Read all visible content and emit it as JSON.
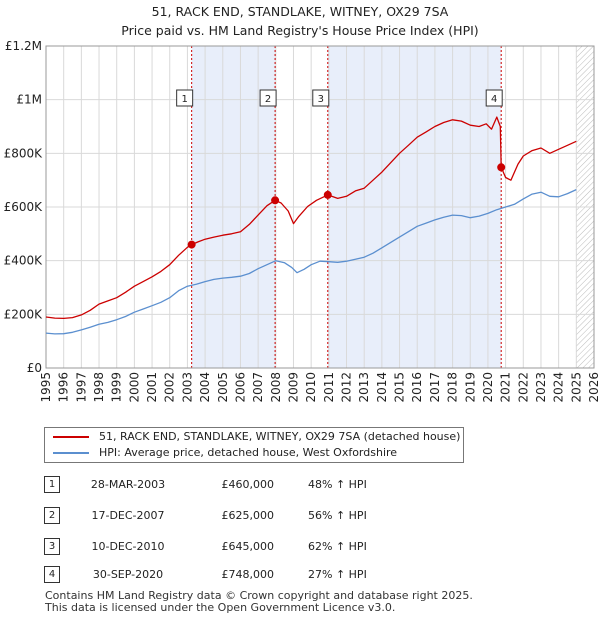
{
  "title_line1": "51, RACK END, STANDLAKE, WITNEY, OX29 7SA",
  "title_line2": "Price paid vs. HM Land Registry's House Price Index (HPI)",
  "legend": {
    "property": "51, RACK END, STANDLAKE, WITNEY, OX29 7SA (detached house)",
    "hpi": "HPI: Average price, detached house, West Oxfordshire"
  },
  "colors": {
    "property_line": "#cc0000",
    "hpi_line": "#5b8fcf",
    "shade": "#e8eefa",
    "grid": "#d9d9d9"
  },
  "sales": [
    {
      "num": "1",
      "date": "28-MAR-2003",
      "price": "£460,000",
      "hpi": "48% ↑ HPI"
    },
    {
      "num": "2",
      "date": "17-DEC-2007",
      "price": "£625,000",
      "hpi": "56% ↑ HPI"
    },
    {
      "num": "3",
      "date": "10-DEC-2010",
      "price": "£645,000",
      "hpi": "62% ↑ HPI"
    },
    {
      "num": "4",
      "date": "30-SEP-2020",
      "price": "£748,000",
      "hpi": "27% ↑ HPI"
    }
  ],
  "footer": {
    "line1": "Contains HM Land Registry data © Crown copyright and database right 2025.",
    "line2": "This data is licensed under the Open Government Licence v3.0."
  },
  "chart_data": {
    "type": "line",
    "title": "51, RACK END, STANDLAKE, WITNEY, OX29 7SA — Price paid vs. HM Land Registry's House Price Index (HPI)",
    "xlabel": "",
    "ylabel": "",
    "xlim": [
      1995,
      2026
    ],
    "ylim": [
      0,
      1200000
    ],
    "x_ticks": [
      1995,
      1996,
      1997,
      1998,
      1999,
      2000,
      2001,
      2002,
      2003,
      2004,
      2005,
      2006,
      2007,
      2008,
      2009,
      2010,
      2011,
      2012,
      2013,
      2014,
      2015,
      2016,
      2017,
      2018,
      2019,
      2020,
      2021,
      2022,
      2023,
      2024,
      2025,
      2026
    ],
    "y_ticks": [
      {
        "value": 0,
        "label": "£0"
      },
      {
        "value": 200000,
        "label": "£200K"
      },
      {
        "value": 400000,
        "label": "£400K"
      },
      {
        "value": 600000,
        "label": "£600K"
      },
      {
        "value": 800000,
        "label": "£800K"
      },
      {
        "value": 1000000,
        "label": "£1M"
      },
      {
        "value": 1200000,
        "label": "£1.2M"
      }
    ],
    "grid": true,
    "shaded_ranges": [
      [
        2003.24,
        2007.96
      ],
      [
        2010.94,
        2020.75
      ]
    ],
    "future_hatch_from": 2025.0,
    "sale_markers": [
      {
        "label": "1",
        "x": 2003.24,
        "y": 460000
      },
      {
        "label": "2",
        "x": 2007.96,
        "y": 625000
      },
      {
        "label": "3",
        "x": 2010.94,
        "y": 645000
      },
      {
        "label": "4",
        "x": 2020.75,
        "y": 748000
      }
    ],
    "series": [
      {
        "name": "51, RACK END, STANDLAKE, WITNEY, OX29 7SA (detached house)",
        "color": "#cc0000",
        "points": [
          [
            1995.0,
            190000
          ],
          [
            1995.5,
            186000
          ],
          [
            1996.0,
            185000
          ],
          [
            1996.5,
            188000
          ],
          [
            1997.0,
            198000
          ],
          [
            1997.5,
            215000
          ],
          [
            1998.0,
            238000
          ],
          [
            1998.5,
            250000
          ],
          [
            1999.0,
            262000
          ],
          [
            1999.5,
            282000
          ],
          [
            2000.0,
            305000
          ],
          [
            2000.5,
            322000
          ],
          [
            2001.0,
            340000
          ],
          [
            2001.5,
            360000
          ],
          [
            2002.0,
            385000
          ],
          [
            2002.5,
            420000
          ],
          [
            2003.0,
            450000
          ],
          [
            2003.24,
            460000
          ],
          [
            2003.6,
            470000
          ],
          [
            2004.0,
            480000
          ],
          [
            2004.5,
            488000
          ],
          [
            2005.0,
            495000
          ],
          [
            2005.5,
            500000
          ],
          [
            2006.0,
            508000
          ],
          [
            2006.5,
            535000
          ],
          [
            2007.0,
            570000
          ],
          [
            2007.5,
            605000
          ],
          [
            2007.96,
            625000
          ],
          [
            2008.3,
            615000
          ],
          [
            2008.7,
            585000
          ],
          [
            2009.0,
            538000
          ],
          [
            2009.3,
            565000
          ],
          [
            2009.8,
            602000
          ],
          [
            2010.3,
            625000
          ],
          [
            2010.94,
            645000
          ],
          [
            2011.5,
            632000
          ],
          [
            2012.0,
            640000
          ],
          [
            2012.5,
            660000
          ],
          [
            2013.0,
            670000
          ],
          [
            2013.5,
            700000
          ],
          [
            2014.0,
            730000
          ],
          [
            2014.5,
            765000
          ],
          [
            2015.0,
            800000
          ],
          [
            2015.5,
            830000
          ],
          [
            2016.0,
            860000
          ],
          [
            2016.5,
            880000
          ],
          [
            2017.0,
            900000
          ],
          [
            2017.5,
            915000
          ],
          [
            2018.0,
            925000
          ],
          [
            2018.5,
            920000
          ],
          [
            2019.0,
            905000
          ],
          [
            2019.5,
            900000
          ],
          [
            2019.9,
            910000
          ],
          [
            2020.2,
            890000
          ],
          [
            2020.5,
            935000
          ],
          [
            2020.7,
            900000
          ],
          [
            2020.75,
            748000
          ],
          [
            2021.0,
            710000
          ],
          [
            2021.3,
            700000
          ],
          [
            2021.7,
            760000
          ],
          [
            2022.0,
            790000
          ],
          [
            2022.5,
            810000
          ],
          [
            2023.0,
            820000
          ],
          [
            2023.5,
            800000
          ],
          [
            2024.0,
            815000
          ],
          [
            2024.5,
            830000
          ],
          [
            2025.0,
            845000
          ]
        ]
      },
      {
        "name": "HPI: Average price, detached house, West Oxfordshire",
        "color": "#5b8fcf",
        "points": [
          [
            1995.0,
            130000
          ],
          [
            1995.5,
            127000
          ],
          [
            1996.0,
            128000
          ],
          [
            1996.5,
            133000
          ],
          [
            1997.0,
            142000
          ],
          [
            1997.5,
            152000
          ],
          [
            1998.0,
            163000
          ],
          [
            1998.5,
            170000
          ],
          [
            1999.0,
            180000
          ],
          [
            1999.5,
            192000
          ],
          [
            2000.0,
            208000
          ],
          [
            2000.5,
            220000
          ],
          [
            2001.0,
            232000
          ],
          [
            2001.5,
            245000
          ],
          [
            2002.0,
            262000
          ],
          [
            2002.5,
            288000
          ],
          [
            2003.0,
            305000
          ],
          [
            2003.5,
            312000
          ],
          [
            2004.0,
            322000
          ],
          [
            2004.5,
            330000
          ],
          [
            2005.0,
            335000
          ],
          [
            2005.5,
            338000
          ],
          [
            2006.0,
            342000
          ],
          [
            2006.5,
            352000
          ],
          [
            2007.0,
            370000
          ],
          [
            2007.5,
            385000
          ],
          [
            2008.0,
            400000
          ],
          [
            2008.5,
            392000
          ],
          [
            2008.9,
            375000
          ],
          [
            2009.2,
            355000
          ],
          [
            2009.6,
            368000
          ],
          [
            2010.0,
            385000
          ],
          [
            2010.5,
            398000
          ],
          [
            2011.0,
            396000
          ],
          [
            2011.5,
            394000
          ],
          [
            2012.0,
            398000
          ],
          [
            2012.5,
            405000
          ],
          [
            2013.0,
            413000
          ],
          [
            2013.5,
            428000
          ],
          [
            2014.0,
            448000
          ],
          [
            2014.5,
            468000
          ],
          [
            2015.0,
            488000
          ],
          [
            2015.5,
            508000
          ],
          [
            2016.0,
            528000
          ],
          [
            2016.5,
            540000
          ],
          [
            2017.0,
            552000
          ],
          [
            2017.5,
            562000
          ],
          [
            2018.0,
            570000
          ],
          [
            2018.5,
            568000
          ],
          [
            2019.0,
            560000
          ],
          [
            2019.5,
            566000
          ],
          [
            2020.0,
            576000
          ],
          [
            2020.5,
            590000
          ],
          [
            2021.0,
            600000
          ],
          [
            2021.5,
            610000
          ],
          [
            2022.0,
            630000
          ],
          [
            2022.5,
            648000
          ],
          [
            2023.0,
            655000
          ],
          [
            2023.5,
            640000
          ],
          [
            2024.0,
            638000
          ],
          [
            2024.5,
            650000
          ],
          [
            2025.0,
            665000
          ]
        ]
      }
    ]
  }
}
